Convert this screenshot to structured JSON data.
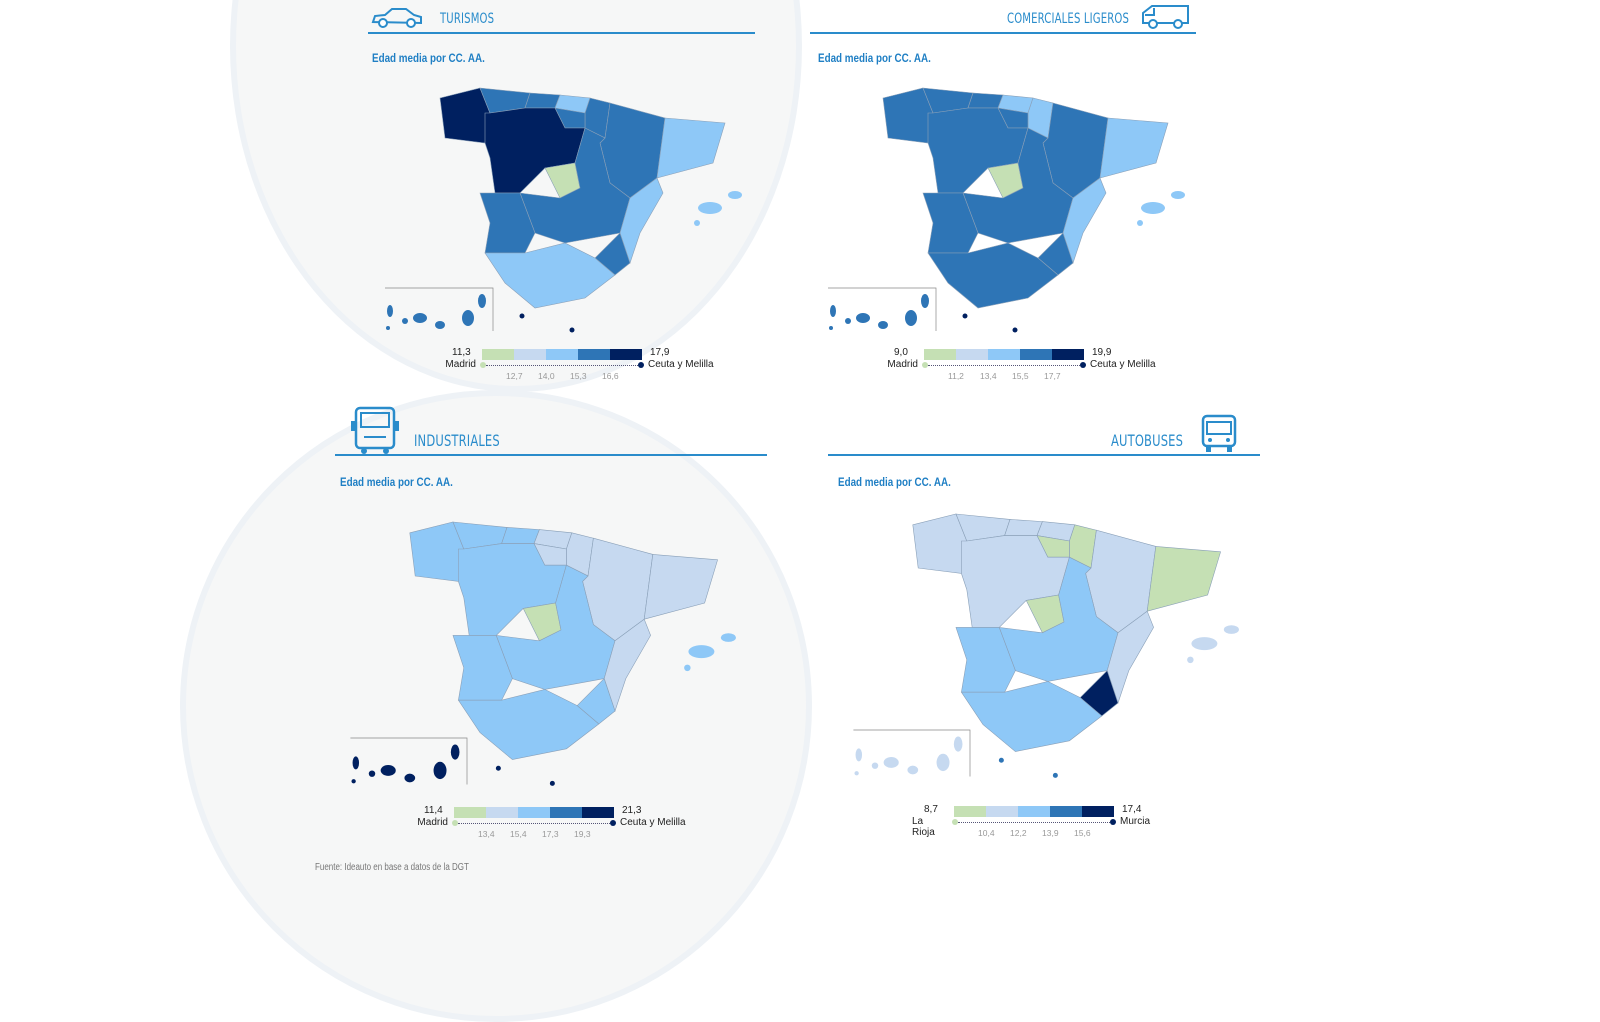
{
  "palette": [
    "#c5e0b4",
    "#c6d9f0",
    "#8ec8f7",
    "#2e75b6",
    "#002060"
  ],
  "subtitle": "Edad media por CC. AA.",
  "footer": "Fuente: Ideauto en base a datos de la DGT",
  "panels": [
    {
      "title": "TURISMOS",
      "icon": "car-icon",
      "legend": {
        "min": "11,3",
        "max": "17,9",
        "min_region": "Madrid",
        "max_region": "Ceuta y Melilla",
        "ticks": [
          "12,7",
          "14,0",
          "15,3",
          "16,6"
        ]
      },
      "regions": {
        "galicia": 4,
        "asturias": 3,
        "cantabria": 3,
        "pais-vasco": 2,
        "navarra": 3,
        "la-rioja": 3,
        "aragon": 3,
        "cataluna": 2,
        "castilla-y-leon": 4,
        "madrid": 0,
        "castilla-la-mancha": 3,
        "extremadura": 3,
        "valencia": 2,
        "murcia": 3,
        "andalucia": 2,
        "baleares": 2,
        "canarias": 3,
        "ceuta-melilla": 4
      }
    },
    {
      "title": "COMERCIALES LIGEROS",
      "icon": "van-icon",
      "legend": {
        "min": "9,0",
        "max": "19,9",
        "min_region": "Madrid",
        "max_region": "Ceuta y Melilla",
        "ticks": [
          "11,2",
          "13,4",
          "15,5",
          "17,7"
        ]
      },
      "regions": {
        "galicia": 3,
        "asturias": 3,
        "cantabria": 3,
        "pais-vasco": 2,
        "navarra": 2,
        "la-rioja": 3,
        "aragon": 3,
        "cataluna": 2,
        "castilla-y-leon": 3,
        "madrid": 0,
        "castilla-la-mancha": 3,
        "extremadura": 3,
        "valencia": 2,
        "murcia": 3,
        "andalucia": 3,
        "baleares": 2,
        "canarias": 3,
        "ceuta-melilla": 4
      }
    },
    {
      "title": "INDUSTRIALES",
      "icon": "truck-icon",
      "legend": {
        "min": "11,4",
        "max": "21,3",
        "min_region": "Madrid",
        "max_region": "Ceuta y Melilla",
        "ticks": [
          "13,4",
          "15,4",
          "17,3",
          "19,3"
        ]
      },
      "regions": {
        "galicia": 2,
        "asturias": 2,
        "cantabria": 2,
        "pais-vasco": 1,
        "navarra": 1,
        "la-rioja": 1,
        "aragon": 1,
        "cataluna": 1,
        "castilla-y-leon": 2,
        "madrid": 0,
        "castilla-la-mancha": 2,
        "extremadura": 2,
        "valencia": 1,
        "murcia": 2,
        "andalucia": 2,
        "baleares": 2,
        "canarias": 4,
        "ceuta-melilla": 4
      }
    },
    {
      "title": "AUTOBUSES",
      "icon": "bus-icon",
      "legend": {
        "min": "8,7",
        "max": "17,4",
        "min_region": "La Rioja",
        "max_region": "Murcia",
        "ticks": [
          "10,4",
          "12,2",
          "13,9",
          "15,6"
        ]
      },
      "regions": {
        "galicia": 1,
        "asturias": 1,
        "cantabria": 1,
        "pais-vasco": 1,
        "navarra": 0,
        "la-rioja": 0,
        "aragon": 1,
        "cataluna": 0,
        "castilla-y-leon": 1,
        "madrid": 0,
        "castilla-la-mancha": 2,
        "extremadura": 2,
        "valencia": 1,
        "murcia": 4,
        "andalucia": 2,
        "baleares": 1,
        "canarias": 1,
        "ceuta-melilla": 3
      }
    }
  ]
}
